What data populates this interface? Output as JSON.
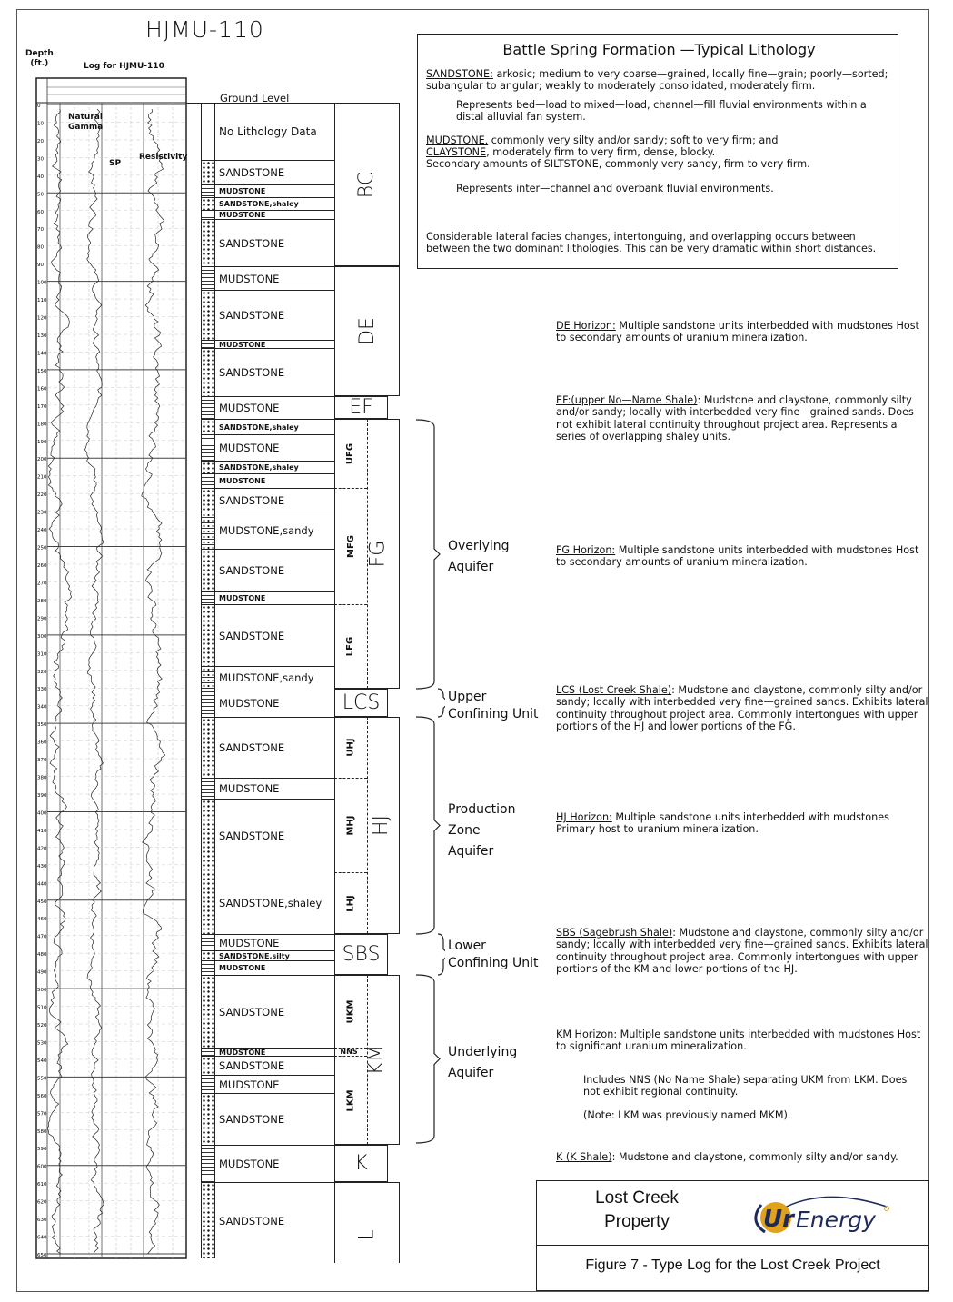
{
  "title": "HJMU-110",
  "log": {
    "depth_label": "Depth\n(ft.)",
    "log_title": "Log for HJMU-110",
    "curve_labels": [
      "Natural Gamma",
      "SP",
      "Resistivity"
    ],
    "depth_ticks": [
      0,
      10,
      20,
      30,
      40,
      50,
      60,
      70,
      80,
      90,
      100,
      110,
      120,
      130,
      140,
      150,
      160,
      170,
      180,
      190,
      200,
      210,
      220,
      230,
      240,
      250,
      260,
      270,
      280,
      290,
      300,
      310,
      320,
      330,
      340,
      350,
      360,
      370,
      380,
      390,
      400,
      410,
      420,
      430,
      440,
      450,
      460,
      470,
      480,
      490,
      500,
      510,
      520,
      530,
      540,
      550,
      560,
      570,
      580,
      590,
      600,
      610,
      620,
      630,
      640,
      650
    ]
  },
  "ground_level": "Ground Level",
  "lithology": [
    {
      "label": "No Lithology Data",
      "type": "none"
    },
    {
      "label": "SANDSTONE",
      "type": "sand"
    },
    {
      "label": "MUDSTONE",
      "type": "mud"
    },
    {
      "label": "SANDSTONE,shaley",
      "type": "sand"
    },
    {
      "label": "MUDSTONE",
      "type": "mud"
    },
    {
      "label": "SANDSTONE",
      "type": "sand"
    },
    {
      "label": "MUDSTONE",
      "type": "mud"
    },
    {
      "label": "SANDSTONE",
      "type": "sand"
    },
    {
      "label": "MUDSTONE",
      "type": "mud"
    },
    {
      "label": "SANDSTONE",
      "type": "sand"
    },
    {
      "label": "MUDSTONE",
      "type": "mud"
    },
    {
      "label": "SANDSTONE,shaley",
      "type": "sand"
    },
    {
      "label": "MUDSTONE",
      "type": "mud"
    },
    {
      "label": "SANDSTONE,shaley",
      "type": "sand"
    },
    {
      "label": "MUDSTONE",
      "type": "mud"
    },
    {
      "label": "SANDSTONE",
      "type": "sand"
    },
    {
      "label": "MUDSTONE,sandy",
      "type": "mixed"
    },
    {
      "label": "SANDSTONE",
      "type": "sand"
    },
    {
      "label": "MUDSTONE",
      "type": "mud"
    },
    {
      "label": "SANDSTONE",
      "type": "sand"
    },
    {
      "label": "MUDSTONE,sandy",
      "type": "mixed"
    },
    {
      "label": "MUDSTONE",
      "type": "mud"
    },
    {
      "label": "SANDSTONE",
      "type": "sand"
    },
    {
      "label": "MUDSTONE",
      "type": "mud"
    },
    {
      "label": "SANDSTONE",
      "type": "sand"
    },
    {
      "label": "SANDSTONE,shaley",
      "type": "sand"
    },
    {
      "label": "MUDSTONE",
      "type": "mud"
    },
    {
      "label": "SANDSTONE,silty",
      "type": "sand"
    },
    {
      "label": "MUDSTONE",
      "type": "mud"
    },
    {
      "label": "SANDSTONE",
      "type": "sand"
    },
    {
      "label": "MUDSTONE",
      "type": "mud"
    },
    {
      "label": "SANDSTONE",
      "type": "sand"
    },
    {
      "label": "MUDSTONE",
      "type": "mud"
    },
    {
      "label": "SANDSTONE",
      "type": "sand"
    },
    {
      "label": "MUDSTONE",
      "type": "mud"
    },
    {
      "label": "SANDSTONE",
      "type": "sand"
    }
  ],
  "units": [
    "BC",
    "DE",
    "EF",
    "FG",
    "LCS",
    "HJ",
    "SBS",
    "KM",
    "K",
    "L"
  ],
  "subunits": [
    "UFG",
    "MFG",
    "LFG",
    "UHJ",
    "MHJ",
    "LHJ",
    "UKM",
    "NNS",
    "LKM"
  ],
  "aquifers": [
    {
      "label": "Overlying\nAquifer"
    },
    {
      "label": "Upper\nConfining Unit"
    },
    {
      "label": "Production\nZone\nAquifer"
    },
    {
      "label": "Lower\nConfining Unit"
    },
    {
      "label": "Underlying\nAquifer"
    }
  ],
  "legend": {
    "title": "Battle Spring Formation —Typical Lithology",
    "sandstone_term": "SANDSTONE:",
    "sandstone_text": " arkosic; medium to very coarse—grained, locally fine—grain; poorly—sorted; subangular to angular; weakly to moderately consolidated, moderately firm.",
    "sandstone_env": "Represents bed—load to mixed—load, channel—fill fluvial environments within a distal alluvial fan system.",
    "mudstone_term": "MUDSTONE,",
    "mudstone_text": " commonly very silty and/or sandy; soft to very firm; and",
    "claystone_term": "CLAYSTONE",
    "claystone_text": ", moderately firm to very firm, dense, blocky.",
    "siltstone_text": "Secondary amounts of SILTSTONE, commonly very sandy, firm to very firm.",
    "mudstone_env": "Represents inter—channel and overbank fluvial environments.",
    "facies_note": "Considerable lateral facies changes, intertonguing, and overlapping occurs between between the two dominant lithologies.  This can be very dramatic within short distances."
  },
  "descriptions": [
    {
      "term": "DE Horizon:",
      "text": " Multiple sandstone units interbedded with mudstones Host to secondary amounts of uranium mineralization."
    },
    {
      "term": "EF:(upper No—Name Shale)",
      "text": ": Mudstone and claystone, commonly silty and/or sandy; locally with interbedded very fine—grained sands. Does not exhibit lateral continuity throughout project area. Represents a series of overlapping shaley units."
    },
    {
      "term": "FG Horizon:",
      "text": " Multiple sandstone units interbedded with mudstones Host to secondary amounts of uranium mineralization."
    },
    {
      "term": "LCS (Lost Creek Shale)",
      "text": ": Mudstone and claystone, commonly silty and/or sandy; locally with interbedded very fine—grained sands. Exhibits lateral continuity throughout project area. Commonly intertongues with upper portions of the HJ and lower portions of the FG."
    },
    {
      "term": "HJ Horizon:",
      "text": " Multiple sandstone units interbedded with mudstones Primary host to uranium mineralization."
    },
    {
      "term": "SBS (Sagebrush Shale)",
      "text": ": Mudstone and claystone, commonly silty and/or sandy; locally with interbedded very fine—grained sands. Exhibits lateral continuity throughout project area. Commonly intertongues with upper portions of the KM and lower portions of the HJ."
    },
    {
      "term": "KM Horizon:",
      "text": " Multiple sandstone units interbedded with mudstones Host to significant uranium mineralization."
    },
    {
      "term": "",
      "text": "Includes NNS (No Name Shale) separating UKM from LKM. Does not exhibit regional continuity."
    },
    {
      "term": "",
      "text": "(Note: LKM was previously named MKM)."
    },
    {
      "term": "K (K Shale)",
      "text": ": Mudstone and claystone, commonly silty and/or sandy."
    }
  ],
  "title_block": {
    "property": "Lost Creek\nProperty",
    "logo_text": "Ur-Energy",
    "caption": "Figure 7 - Type Log for the Lost Creek Project",
    "logo_colors": {
      "gold": "#e0a21c",
      "navy": "#1f2a5c"
    }
  }
}
